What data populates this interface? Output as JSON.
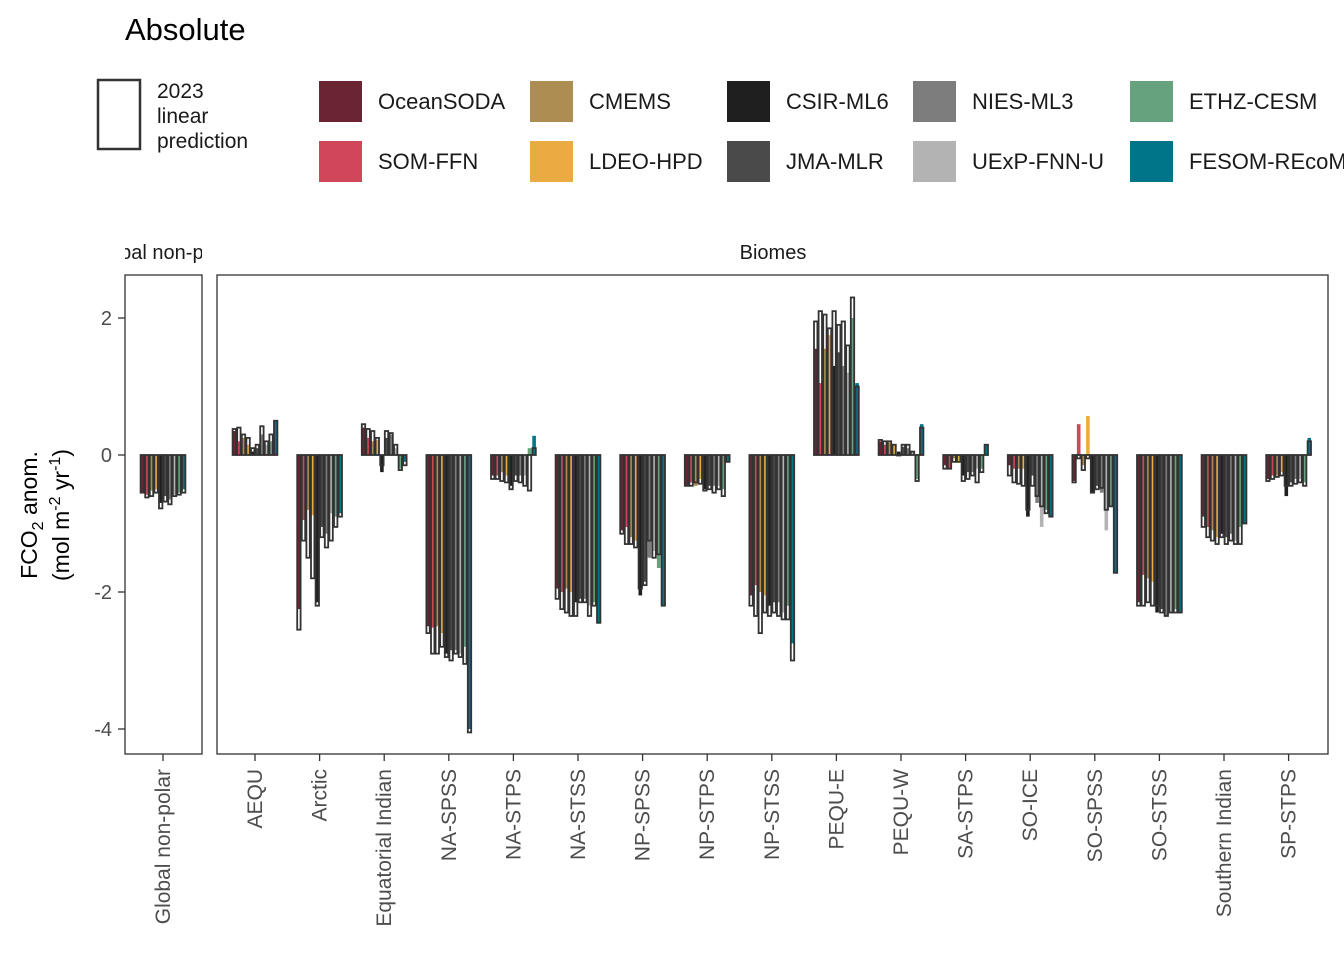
{
  "chart_data": {
    "type": "bar",
    "title": "Absolute",
    "ylabel": {
      "line1_main": "FCO",
      "line1_sub": "2",
      "line1_rest": " anom.",
      "line2_a": "(mol m",
      "line2_sup1": "-2",
      "line2_b": " yr",
      "line2_sup2": "-1",
      "line2_c": ")"
    },
    "ylim": [
      -4.4,
      2.6
    ],
    "yticks": [
      {
        "label": "2",
        "value": 2
      },
      {
        "label": "0",
        "value": 0
      },
      {
        "label": "-2",
        "value": -2
      },
      {
        "label": "-4",
        "value": -4
      }
    ],
    "grid": false,
    "legend_placement": "top",
    "outline_legend": {
      "lines": [
        "2023",
        "linear",
        "prediction"
      ]
    },
    "products": [
      {
        "name": "OceanSODA",
        "color": "#6b2532"
      },
      {
        "name": "SOM-FFN",
        "color": "#d1475a"
      },
      {
        "name": "CMEMS",
        "color": "#ad8d52"
      },
      {
        "name": "LDEO-HPD",
        "color": "#ebab43"
      },
      {
        "name": "CSIR-ML6",
        "color": "#1f1f1f"
      },
      {
        "name": "JMA-MLR",
        "color": "#4a4a4a"
      },
      {
        "name": "NIES-ML3",
        "color": "#7d7d7d"
      },
      {
        "name": "UExP-FNN-U",
        "color": "#b3b3b3"
      },
      {
        "name": "ETHZ-CESM",
        "color": "#67a27e"
      },
      {
        "name": "FESOM-REcoM",
        "color": "#00758a"
      }
    ],
    "panels": [
      {
        "strip": "Global non-polar",
        "regions": [
          {
            "name": "Global non-polar",
            "fill": [
              -0.55,
              -0.58,
              -0.52,
              -0.5,
              -0.7,
              -0.6,
              -0.65,
              -0.58,
              -0.55,
              -0.5
            ],
            "pred": [
              -0.55,
              -0.62,
              -0.6,
              -0.55,
              -0.78,
              -0.68,
              -0.72,
              -0.6,
              -0.58,
              -0.55
            ]
          }
        ]
      },
      {
        "strip": "Biomes",
        "regions": [
          {
            "name": "AEQU",
            "fill": [
              0.35,
              0.2,
              0.25,
              0.15,
              0.05,
              0.1,
              0.3,
              0.15,
              0.2,
              0.5
            ],
            "pred": [
              0.38,
              0.4,
              0.3,
              0.25,
              0.1,
              0.15,
              0.42,
              0.2,
              0.3,
              0.5
            ]
          },
          {
            "name": "Arctic",
            "fill": [
              -2.25,
              -0.95,
              -0.8,
              -0.88,
              -2.15,
              -1.05,
              -1.15,
              -0.85,
              -0.9,
              -0.85
            ],
            "pred": [
              -2.55,
              -1.25,
              -1.5,
              -1.8,
              -2.2,
              -1.2,
              -1.35,
              -1.25,
              -1.05,
              -0.9
            ]
          },
          {
            "name": "Equatorial Indian",
            "fill": [
              0.4,
              0.25,
              0.2,
              0.22,
              -0.25,
              0.25,
              0.3,
              0.1,
              -0.2,
              -0.1
            ],
            "pred": [
              0.45,
              0.38,
              0.35,
              0.25,
              -0.15,
              0.35,
              0.32,
              0.15,
              -0.22,
              -0.15
            ]
          },
          {
            "name": "NA-SPSS",
            "fill": [
              -2.5,
              -2.52,
              -2.5,
              -2.6,
              -2.9,
              -2.85,
              -2.85,
              -2.9,
              -2.8,
              -4.0
            ],
            "pred": [
              -2.6,
              -2.9,
              -2.9,
              -2.8,
              -2.95,
              -3.0,
              -2.9,
              -2.95,
              -3.05,
              -4.05
            ]
          },
          {
            "name": "NA-STPS",
            "fill": [
              -0.3,
              -0.3,
              -0.25,
              -0.3,
              -0.45,
              -0.3,
              -0.3,
              -0.3,
              0.1,
              0.28
            ],
            "pred": [
              -0.35,
              -0.35,
              -0.38,
              -0.4,
              -0.5,
              -0.38,
              -0.4,
              -0.45,
              -0.52,
              0.1
            ]
          },
          {
            "name": "NA-STSS",
            "fill": [
              -1.95,
              -2.0,
              -1.95,
              -2.0,
              -2.15,
              -2.1,
              -2.1,
              -2.2,
              -2.15,
              -2.45
            ],
            "pred": [
              -2.1,
              -2.25,
              -2.3,
              -2.35,
              -2.35,
              -2.15,
              -2.15,
              -2.35,
              -2.2,
              -2.45
            ]
          },
          {
            "name": "NP-SPSS",
            "fill": [
              -1.1,
              -1.05,
              -1.2,
              -1.25,
              -2.05,
              -1.85,
              -1.5,
              -1.4,
              -1.65,
              -2.2
            ],
            "pred": [
              -1.15,
              -1.3,
              -1.3,
              -1.35,
              -1.95,
              -1.9,
              -1.25,
              -1.5,
              -1.45,
              -2.2
            ]
          },
          {
            "name": "NP-STPS",
            "fill": [
              -0.45,
              -0.4,
              -0.45,
              -0.35,
              -0.5,
              -0.45,
              -0.45,
              -0.45,
              -0.5,
              -0.1
            ],
            "pred": [
              -0.45,
              -0.45,
              -0.4,
              -0.42,
              -0.52,
              -0.5,
              -0.55,
              -0.5,
              -0.6,
              -0.1
            ]
          },
          {
            "name": "NP-STSS",
            "fill": [
              -2.05,
              -1.9,
              -2.0,
              -2.05,
              -2.2,
              -2.15,
              -2.15,
              -2.3,
              -2.2,
              -2.75
            ],
            "pred": [
              -2.2,
              -2.35,
              -2.6,
              -2.3,
              -2.35,
              -2.3,
              -2.35,
              -2.4,
              -2.4,
              -3.0
            ]
          },
          {
            "name": "PEQU-E",
            "fill": [
              1.55,
              1.05,
              1.55,
              1.75,
              1.3,
              1.5,
              1.3,
              1.2,
              2.0,
              1.05
            ],
            "pred": [
              1.95,
              2.1,
              2.05,
              1.85,
              2.1,
              1.9,
              1.95,
              1.6,
              2.3,
              1.0
            ]
          },
          {
            "name": "PEQU-W",
            "fill": [
              0.2,
              0.15,
              0.18,
              0.15,
              0.05,
              0.12,
              0.1,
              0.05,
              -0.35,
              0.45
            ],
            "pred": [
              0.22,
              0.2,
              0.2,
              0.15,
              0.0,
              0.15,
              0.15,
              0.05,
              -0.38,
              0.4
            ]
          },
          {
            "name": "SA-STPS",
            "fill": [
              -0.15,
              -0.2,
              -0.05,
              -0.1,
              -0.3,
              -0.25,
              -0.25,
              -0.2,
              -0.2,
              0.15
            ],
            "pred": [
              -0.2,
              -0.2,
              -0.1,
              -0.1,
              -0.38,
              -0.35,
              -0.3,
              -0.4,
              -0.25,
              0.15
            ]
          },
          {
            "name": "SO-ICE",
            "fill": [
              -0.15,
              -0.2,
              -0.2,
              -0.2,
              -0.9,
              -0.3,
              -0.7,
              -1.05,
              -0.8,
              -0.9
            ],
            "pred": [
              -0.3,
              -0.4,
              -0.42,
              -0.45,
              -0.8,
              -0.45,
              -0.6,
              -0.75,
              -0.85,
              -0.9
            ]
          },
          {
            "name": "SO-SPSS",
            "fill": [
              -0.38,
              0.45,
              -0.15,
              0.57,
              -0.55,
              -0.45,
              -0.55,
              -1.1,
              -0.75,
              -1.72
            ],
            "pred": [
              -0.4,
              -0.05,
              -0.22,
              -0.05,
              -0.55,
              -0.5,
              -0.48,
              -0.8,
              -0.75,
              -1.72
            ]
          },
          {
            "name": "SO-STSS",
            "fill": [
              -2.15,
              -1.75,
              -1.8,
              -1.85,
              -2.3,
              -2.25,
              -2.35,
              -2.3,
              -2.25,
              -2.3
            ],
            "pred": [
              -2.2,
              -2.2,
              -2.15,
              -2.2,
              -2.2,
              -2.3,
              -2.35,
              -2.3,
              -2.3,
              -2.3
            ]
          },
          {
            "name": "Southern Indian",
            "fill": [
              -0.9,
              -1.05,
              -1.1,
              -1.2,
              -1.15,
              -1.2,
              -1.15,
              -1.25,
              -1.05,
              -1.0
            ],
            "pred": [
              -1.05,
              -1.2,
              -1.25,
              -1.3,
              -1.2,
              -1.3,
              -1.25,
              -1.3,
              -1.3,
              -1.0
            ]
          },
          {
            "name": "SP-STPS",
            "fill": [
              -0.35,
              -0.3,
              -0.3,
              -0.25,
              -0.6,
              -0.4,
              -0.35,
              -0.35,
              -0.4,
              0.25
            ],
            "pred": [
              -0.38,
              -0.35,
              -0.32,
              -0.3,
              -0.45,
              -0.45,
              -0.42,
              -0.4,
              -0.45,
              0.2
            ]
          }
        ]
      }
    ]
  }
}
